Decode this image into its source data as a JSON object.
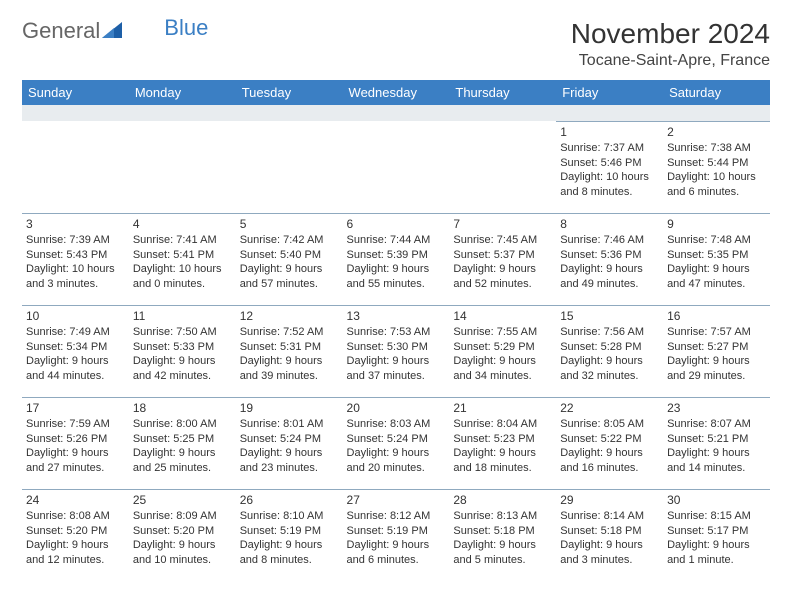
{
  "logo": {
    "general": "General",
    "blue": "Blue"
  },
  "title": "November 2024",
  "location": "Tocane-Saint-Apre, France",
  "colors": {
    "header_bg": "#3b7fc4",
    "header_text": "#ffffff",
    "spacer_bg": "#e8ecef",
    "border": "#8fa9bf",
    "text": "#333333",
    "background": "#ffffff"
  },
  "calendar": {
    "columns": [
      "Sunday",
      "Monday",
      "Tuesday",
      "Wednesday",
      "Thursday",
      "Friday",
      "Saturday"
    ],
    "weeks": [
      [
        null,
        null,
        null,
        null,
        null,
        {
          "day": "1",
          "sunrise": "Sunrise: 7:37 AM",
          "sunset": "Sunset: 5:46 PM",
          "daylight": "Daylight: 10 hours and 8 minutes."
        },
        {
          "day": "2",
          "sunrise": "Sunrise: 7:38 AM",
          "sunset": "Sunset: 5:44 PM",
          "daylight": "Daylight: 10 hours and 6 minutes."
        }
      ],
      [
        {
          "day": "3",
          "sunrise": "Sunrise: 7:39 AM",
          "sunset": "Sunset: 5:43 PM",
          "daylight": "Daylight: 10 hours and 3 minutes."
        },
        {
          "day": "4",
          "sunrise": "Sunrise: 7:41 AM",
          "sunset": "Sunset: 5:41 PM",
          "daylight": "Daylight: 10 hours and 0 minutes."
        },
        {
          "day": "5",
          "sunrise": "Sunrise: 7:42 AM",
          "sunset": "Sunset: 5:40 PM",
          "daylight": "Daylight: 9 hours and 57 minutes."
        },
        {
          "day": "6",
          "sunrise": "Sunrise: 7:44 AM",
          "sunset": "Sunset: 5:39 PM",
          "daylight": "Daylight: 9 hours and 55 minutes."
        },
        {
          "day": "7",
          "sunrise": "Sunrise: 7:45 AM",
          "sunset": "Sunset: 5:37 PM",
          "daylight": "Daylight: 9 hours and 52 minutes."
        },
        {
          "day": "8",
          "sunrise": "Sunrise: 7:46 AM",
          "sunset": "Sunset: 5:36 PM",
          "daylight": "Daylight: 9 hours and 49 minutes."
        },
        {
          "day": "9",
          "sunrise": "Sunrise: 7:48 AM",
          "sunset": "Sunset: 5:35 PM",
          "daylight": "Daylight: 9 hours and 47 minutes."
        }
      ],
      [
        {
          "day": "10",
          "sunrise": "Sunrise: 7:49 AM",
          "sunset": "Sunset: 5:34 PM",
          "daylight": "Daylight: 9 hours and 44 minutes."
        },
        {
          "day": "11",
          "sunrise": "Sunrise: 7:50 AM",
          "sunset": "Sunset: 5:33 PM",
          "daylight": "Daylight: 9 hours and 42 minutes."
        },
        {
          "day": "12",
          "sunrise": "Sunrise: 7:52 AM",
          "sunset": "Sunset: 5:31 PM",
          "daylight": "Daylight: 9 hours and 39 minutes."
        },
        {
          "day": "13",
          "sunrise": "Sunrise: 7:53 AM",
          "sunset": "Sunset: 5:30 PM",
          "daylight": "Daylight: 9 hours and 37 minutes."
        },
        {
          "day": "14",
          "sunrise": "Sunrise: 7:55 AM",
          "sunset": "Sunset: 5:29 PM",
          "daylight": "Daylight: 9 hours and 34 minutes."
        },
        {
          "day": "15",
          "sunrise": "Sunrise: 7:56 AM",
          "sunset": "Sunset: 5:28 PM",
          "daylight": "Daylight: 9 hours and 32 minutes."
        },
        {
          "day": "16",
          "sunrise": "Sunrise: 7:57 AM",
          "sunset": "Sunset: 5:27 PM",
          "daylight": "Daylight: 9 hours and 29 minutes."
        }
      ],
      [
        {
          "day": "17",
          "sunrise": "Sunrise: 7:59 AM",
          "sunset": "Sunset: 5:26 PM",
          "daylight": "Daylight: 9 hours and 27 minutes."
        },
        {
          "day": "18",
          "sunrise": "Sunrise: 8:00 AM",
          "sunset": "Sunset: 5:25 PM",
          "daylight": "Daylight: 9 hours and 25 minutes."
        },
        {
          "day": "19",
          "sunrise": "Sunrise: 8:01 AM",
          "sunset": "Sunset: 5:24 PM",
          "daylight": "Daylight: 9 hours and 23 minutes."
        },
        {
          "day": "20",
          "sunrise": "Sunrise: 8:03 AM",
          "sunset": "Sunset: 5:24 PM",
          "daylight": "Daylight: 9 hours and 20 minutes."
        },
        {
          "day": "21",
          "sunrise": "Sunrise: 8:04 AM",
          "sunset": "Sunset: 5:23 PM",
          "daylight": "Daylight: 9 hours and 18 minutes."
        },
        {
          "day": "22",
          "sunrise": "Sunrise: 8:05 AM",
          "sunset": "Sunset: 5:22 PM",
          "daylight": "Daylight: 9 hours and 16 minutes."
        },
        {
          "day": "23",
          "sunrise": "Sunrise: 8:07 AM",
          "sunset": "Sunset: 5:21 PM",
          "daylight": "Daylight: 9 hours and 14 minutes."
        }
      ],
      [
        {
          "day": "24",
          "sunrise": "Sunrise: 8:08 AM",
          "sunset": "Sunset: 5:20 PM",
          "daylight": "Daylight: 9 hours and 12 minutes."
        },
        {
          "day": "25",
          "sunrise": "Sunrise: 8:09 AM",
          "sunset": "Sunset: 5:20 PM",
          "daylight": "Daylight: 9 hours and 10 minutes."
        },
        {
          "day": "26",
          "sunrise": "Sunrise: 8:10 AM",
          "sunset": "Sunset: 5:19 PM",
          "daylight": "Daylight: 9 hours and 8 minutes."
        },
        {
          "day": "27",
          "sunrise": "Sunrise: 8:12 AM",
          "sunset": "Sunset: 5:19 PM",
          "daylight": "Daylight: 9 hours and 6 minutes."
        },
        {
          "day": "28",
          "sunrise": "Sunrise: 8:13 AM",
          "sunset": "Sunset: 5:18 PM",
          "daylight": "Daylight: 9 hours and 5 minutes."
        },
        {
          "day": "29",
          "sunrise": "Sunrise: 8:14 AM",
          "sunset": "Sunset: 5:18 PM",
          "daylight": "Daylight: 9 hours and 3 minutes."
        },
        {
          "day": "30",
          "sunrise": "Sunrise: 8:15 AM",
          "sunset": "Sunset: 5:17 PM",
          "daylight": "Daylight: 9 hours and 1 minute."
        }
      ]
    ]
  }
}
